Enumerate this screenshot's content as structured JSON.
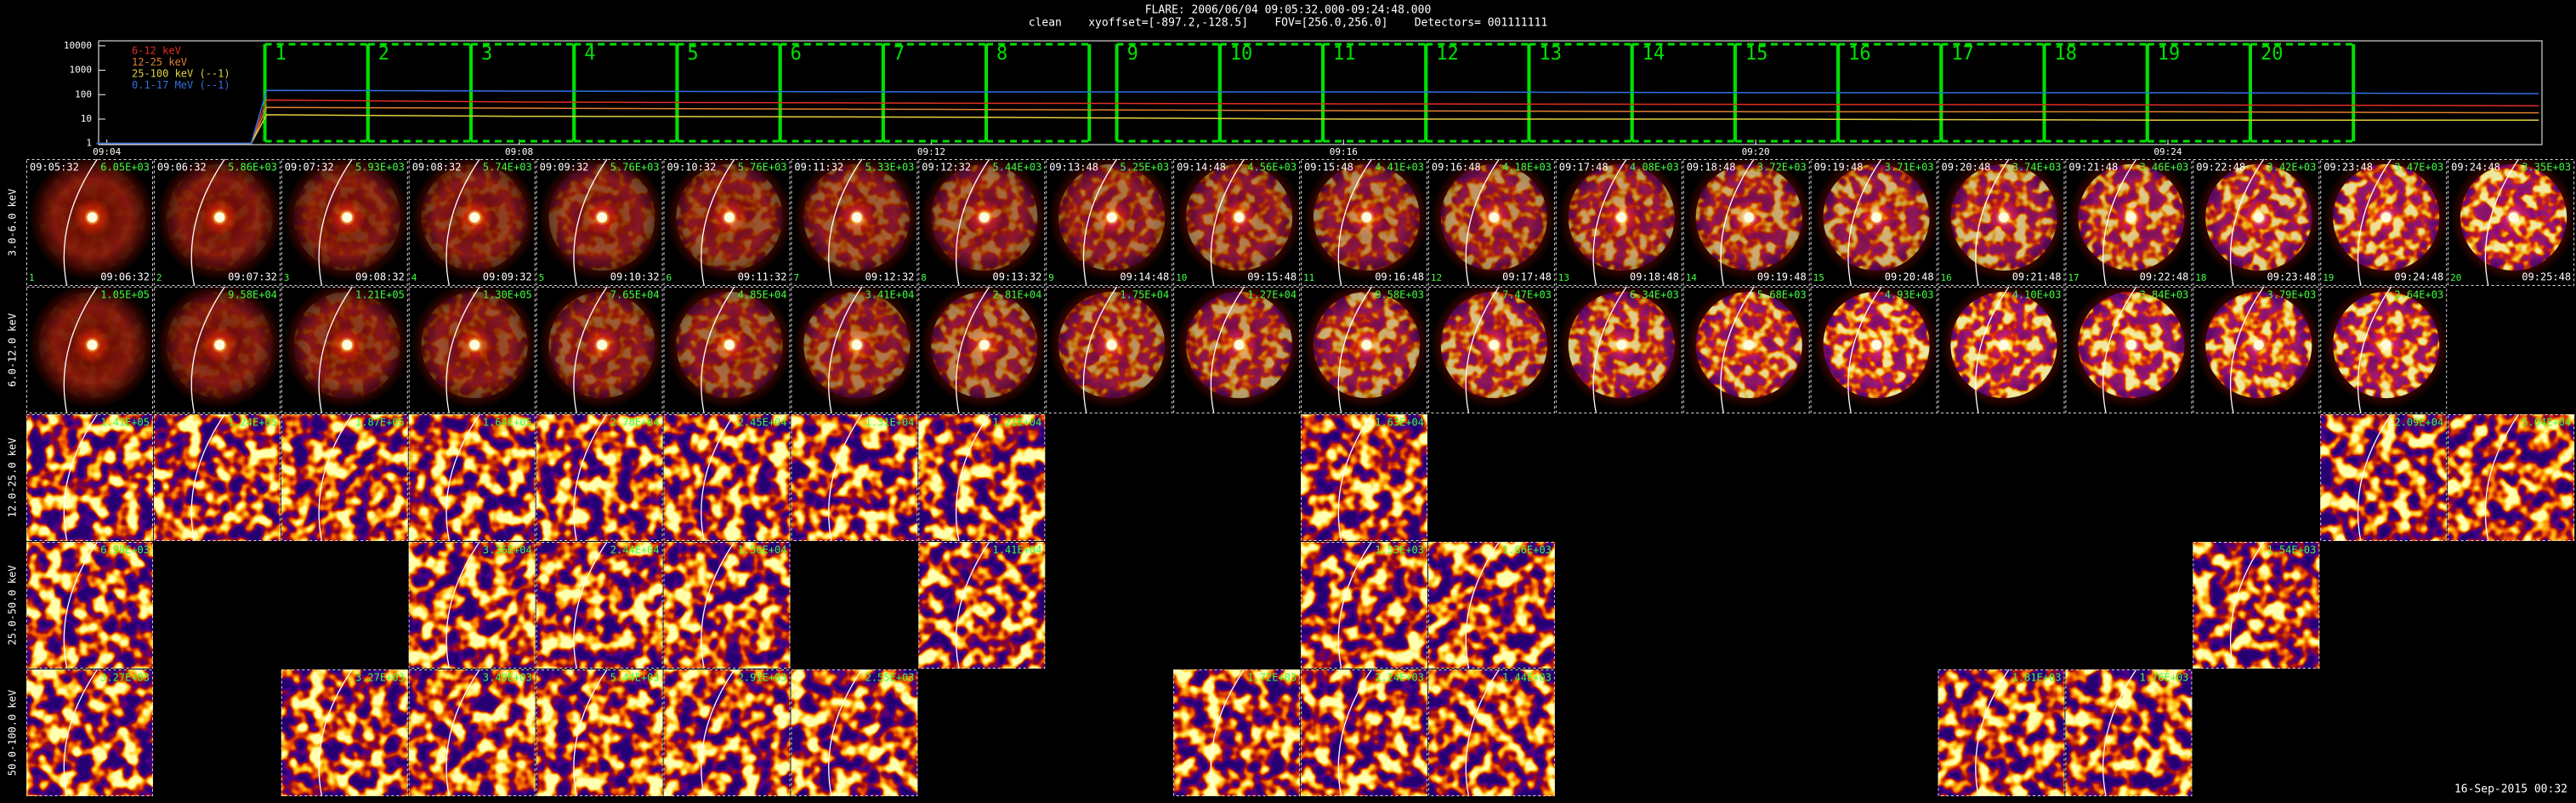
{
  "header": {
    "title": "FLARE: 2006/06/04 09:05:32.000-09:24:48.000",
    "subtitle": "clean    xyoffset=[-897.2,-128.5]    FOV=[256.0,256.0]    Detectors= 001111111"
  },
  "chart_data": {
    "type": "line",
    "ylog": true,
    "x": [
      543.9,
      545.4,
      545.55,
      548,
      552,
      556,
      560,
      564,
      567.6
    ],
    "xlim": [
      543.92,
      567.63
    ],
    "xticks": [
      {
        "value": 544,
        "label": "09:04"
      },
      {
        "value": 548,
        "label": "09:08"
      },
      {
        "value": 552,
        "label": "09:12"
      },
      {
        "value": 556,
        "label": "09:16"
      },
      {
        "value": 560,
        "label": "09:20"
      },
      {
        "value": 564,
        "label": "09:24"
      }
    ],
    "ylim": [
      0.9,
      16000
    ],
    "yticks": [
      1,
      10,
      100,
      1000,
      10000
    ],
    "series": [
      {
        "name": "6-12 keV",
        "color": "#e03020",
        "values": [
          1,
          1,
          60,
          50,
          45,
          42,
          40,
          38,
          35
        ]
      },
      {
        "name": "12-25 keV",
        "color": "#e08030",
        "values": [
          1,
          1,
          30,
          28,
          25,
          22,
          20,
          20,
          18
        ]
      },
      {
        "name": "25-100 keV (--1)",
        "color": "#e0d040",
        "values": [
          1,
          1,
          15,
          13,
          12,
          10,
          10,
          9,
          9
        ]
      },
      {
        "name": "0.1-17 MeV (--1)",
        "color": "#3070e0",
        "values": [
          1,
          1,
          150,
          140,
          130,
          130,
          120,
          120,
          110
        ]
      }
    ]
  },
  "intervals": [
    {
      "label": "1",
      "start": "09:05:32",
      "end": "09:06:32"
    },
    {
      "label": "2",
      "start": "09:06:32",
      "end": "09:07:32"
    },
    {
      "label": "3",
      "start": "09:07:32",
      "end": "09:08:32"
    },
    {
      "label": "4",
      "start": "09:08:32",
      "end": "09:09:32"
    },
    {
      "label": "5",
      "start": "09:09:32",
      "end": "09:10:32"
    },
    {
      "label": "6",
      "start": "09:10:32",
      "end": "09:11:32"
    },
    {
      "label": "7",
      "start": "09:11:32",
      "end": "09:12:32"
    },
    {
      "label": "8",
      "start": "09:12:32",
      "end": "09:13:32"
    },
    {
      "label": "9",
      "start": "09:13:48",
      "end": "09:14:48"
    },
    {
      "label": "10",
      "start": "09:14:48",
      "end": "09:15:48"
    },
    {
      "label": "11",
      "start": "09:15:48",
      "end": "09:16:48"
    },
    {
      "label": "12",
      "start": "09:16:48",
      "end": "09:17:48"
    },
    {
      "label": "13",
      "start": "09:17:48",
      "end": "09:18:48"
    },
    {
      "label": "14",
      "start": "09:18:48",
      "end": "09:19:48"
    },
    {
      "label": "15",
      "start": "09:19:48",
      "end": "09:20:48"
    },
    {
      "label": "16",
      "start": "09:20:48",
      "end": "09:21:48"
    },
    {
      "label": "17",
      "start": "09:21:48",
      "end": "09:22:48"
    },
    {
      "label": "18",
      "start": "09:22:48",
      "end": "09:23:48"
    },
    {
      "label": "19",
      "start": "09:23:48",
      "end": "09:24:48"
    },
    {
      "label": "20",
      "start": "09:24:48",
      "end": "09:25:48"
    }
  ],
  "energy_bands": [
    "3.0-6.0 keV",
    "6.0-12.0 keV",
    "12.0-25.0 keV",
    "25.0-50.0 keV",
    "50.0-100.0 keV"
  ],
  "grid": [
    [
      "6.05E+03",
      "5.86E+03",
      "5.93E+03",
      "5.74E+03",
      "5.76E+03",
      "5.76E+03",
      "5.33E+03",
      "5.44E+03",
      "5.25E+03",
      "4.56E+03",
      "4.41E+03",
      "4.18E+03",
      "4.08E+03",
      "3.72E+03",
      "3.71E+03",
      "3.74E+03",
      "3.46E+03",
      "3.42E+03",
      "3.47E+03",
      "3.35E+03"
    ],
    [
      "1.05E+05",
      "9.58E+04",
      "1.21E+05",
      "1.30E+05",
      "7.65E+04",
      "4.85E+04",
      "3.41E+04",
      "2.81E+04",
      "1.75E+04",
      "1.27E+04",
      "9.58E+03",
      "7.47E+03",
      "6.34E+03",
      "5.68E+03",
      "4.93E+03",
      "4.10E+03",
      "3.84E+03",
      "3.79E+03",
      "2.64E+03",
      null
    ],
    [
      "1.41E+05",
      "1.24E+05",
      "1.87E+05",
      "1.64E+05",
      "2.78E+04",
      "2.45E+04",
      "1.31E+04",
      "1.21E+04",
      null,
      null,
      "1.63E+04",
      null,
      null,
      null,
      null,
      null,
      null,
      null,
      "2.09E+04",
      "5.04E+04"
    ],
    [
      "6.98E+03",
      null,
      null,
      "3.36E+04",
      "2.44E+04",
      "1.56E+04",
      null,
      "1.41E+04",
      null,
      null,
      "1.53E+03",
      "1.66E+03",
      null,
      null,
      null,
      null,
      null,
      "1.54E+03",
      null,
      null
    ],
    [
      "3.27E+03",
      null,
      "3.27E+03",
      "3.49E+03",
      "5.44E+03",
      "2.91E+03",
      "2.55E+03",
      null,
      null,
      "1.72E+03",
      "2.24E+03",
      "1.44E+03",
      null,
      null,
      null,
      "1.81E+03",
      "1.76E+03",
      null,
      null,
      null
    ]
  ],
  "footer": "16-Sep-2015 00:32"
}
